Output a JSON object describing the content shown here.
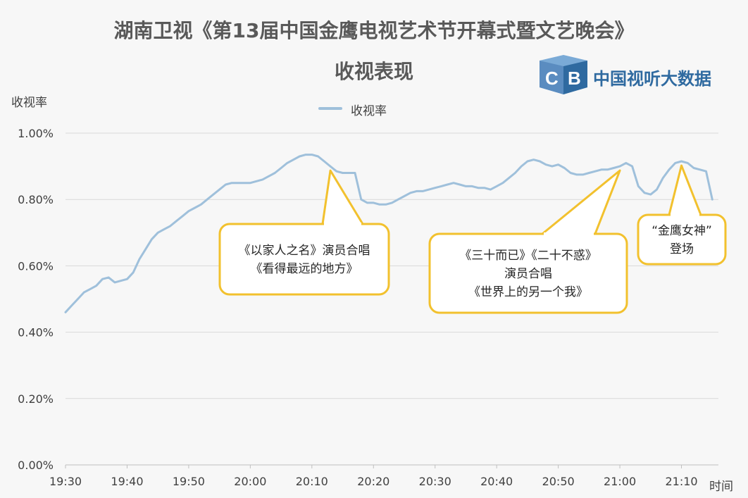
{
  "chart_data": {
    "type": "line",
    "title": "湖南卫视《第13届中国金鹰电视艺术节开幕式暨文艺晚会》",
    "subtitle": "收视表现",
    "ylabel": "收视率",
    "xlabel": "时间",
    "ylim": [
      0,
      1.0
    ],
    "yticks": [
      "0.00%",
      "0.20%",
      "0.40%",
      "0.60%",
      "0.80%",
      "1.00%"
    ],
    "xticks": [
      "19:30",
      "19:40",
      "19:50",
      "20:00",
      "20:10",
      "20:20",
      "20:30",
      "20:40",
      "20:50",
      "21:00",
      "21:10"
    ],
    "grid": "horizontal",
    "legend_position": "top",
    "series": [
      {
        "name": "收视率",
        "color": "#9fc0db",
        "x": [
          "19:30",
          "19:31",
          "19:32",
          "19:33",
          "19:34",
          "19:35",
          "19:36",
          "19:37",
          "19:38",
          "19:39",
          "19:40",
          "19:41",
          "19:42",
          "19:43",
          "19:44",
          "19:45",
          "19:46",
          "19:47",
          "19:48",
          "19:49",
          "19:50",
          "19:51",
          "19:52",
          "19:53",
          "19:54",
          "19:55",
          "19:56",
          "19:57",
          "19:58",
          "19:59",
          "20:00",
          "20:01",
          "20:02",
          "20:03",
          "20:04",
          "20:05",
          "20:06",
          "20:07",
          "20:08",
          "20:09",
          "20:10",
          "20:11",
          "20:12",
          "20:13",
          "20:14",
          "20:15",
          "20:16",
          "20:17",
          "20:18",
          "20:19",
          "20:20",
          "20:21",
          "20:22",
          "20:23",
          "20:24",
          "20:25",
          "20:26",
          "20:27",
          "20:28",
          "20:29",
          "20:30",
          "20:31",
          "20:32",
          "20:33",
          "20:34",
          "20:35",
          "20:36",
          "20:37",
          "20:38",
          "20:39",
          "20:40",
          "20:41",
          "20:42",
          "20:43",
          "20:44",
          "20:45",
          "20:46",
          "20:47",
          "20:48",
          "20:49",
          "20:50",
          "20:51",
          "20:52",
          "20:53",
          "20:54",
          "20:55",
          "20:56",
          "20:57",
          "20:58",
          "20:59",
          "21:00",
          "21:01",
          "21:02",
          "21:03",
          "21:04",
          "21:05",
          "21:06",
          "21:07",
          "21:08",
          "21:09",
          "21:10",
          "21:11",
          "21:12",
          "21:13",
          "21:14",
          "21:15"
        ],
        "values": [
          0.46,
          0.48,
          0.5,
          0.52,
          0.53,
          0.54,
          0.56,
          0.565,
          0.55,
          0.555,
          0.56,
          0.58,
          0.62,
          0.65,
          0.68,
          0.7,
          0.71,
          0.72,
          0.735,
          0.75,
          0.765,
          0.775,
          0.785,
          0.8,
          0.815,
          0.83,
          0.845,
          0.85,
          0.85,
          0.85,
          0.85,
          0.855,
          0.86,
          0.87,
          0.88,
          0.895,
          0.91,
          0.92,
          0.93,
          0.935,
          0.935,
          0.93,
          0.915,
          0.9,
          0.885,
          0.88,
          0.88,
          0.88,
          0.8,
          0.79,
          0.79,
          0.785,
          0.785,
          0.79,
          0.8,
          0.81,
          0.82,
          0.825,
          0.825,
          0.83,
          0.835,
          0.84,
          0.845,
          0.85,
          0.845,
          0.84,
          0.84,
          0.835,
          0.835,
          0.83,
          0.84,
          0.85,
          0.865,
          0.88,
          0.9,
          0.915,
          0.92,
          0.915,
          0.905,
          0.9,
          0.905,
          0.895,
          0.88,
          0.875,
          0.875,
          0.88,
          0.885,
          0.89,
          0.89,
          0.895,
          0.9,
          0.91,
          0.9,
          0.84,
          0.82,
          0.815,
          0.83,
          0.865,
          0.89,
          0.91,
          0.915,
          0.91,
          0.895,
          0.89,
          0.885,
          0.8
        ]
      }
    ],
    "annotations": [
      {
        "id": "a1",
        "x": "20:13",
        "lines": [
          "《以家人之名》演员合唱",
          "《看得最远的地方》"
        ]
      },
      {
        "id": "a2",
        "x": "21:00",
        "lines": [
          "《三十而已》《二十不惑》",
          "演员合唱",
          "《世界上的另一个我》"
        ]
      },
      {
        "id": "a3",
        "x": "21:10",
        "lines": [
          "“金鹰女神”",
          "登场"
        ]
      }
    ]
  },
  "brand": {
    "name": "中国视听大数据",
    "colors": {
      "dark": "#2f6aa0",
      "light": "#7aaad6"
    }
  },
  "colors": {
    "annotation_border": "#f2c12e",
    "grid": "#d9d9d9",
    "axis": "#bfbfbf"
  }
}
